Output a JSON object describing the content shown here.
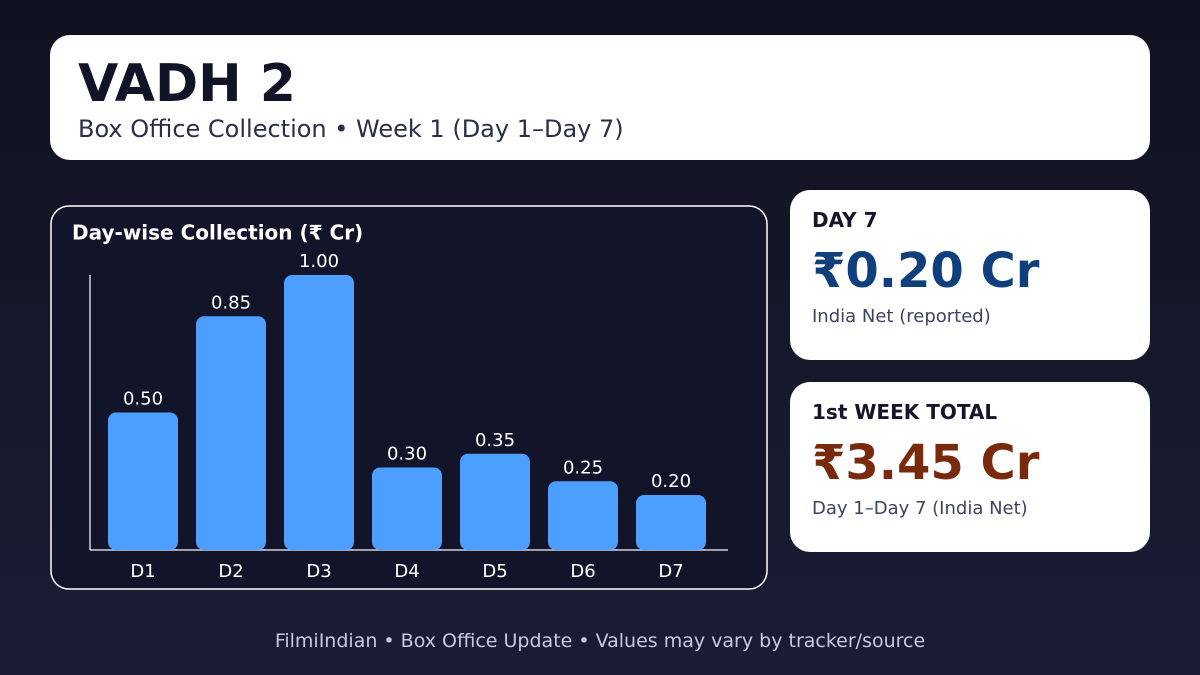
{
  "header": {
    "title": "VADH 2",
    "subtitle": "Box Office Collection • Week 1 (Day 1–Day 7)"
  },
  "chart_data": {
    "type": "bar",
    "title": "Day-wise Collection (₹ Cr)",
    "categories": [
      "D1",
      "D2",
      "D3",
      "D4",
      "D5",
      "D6",
      "D7"
    ],
    "values": [
      0.5,
      0.85,
      1.0,
      0.3,
      0.35,
      0.25,
      0.2
    ],
    "value_labels": [
      "0.50",
      "0.85",
      "1.00",
      "0.30",
      "0.35",
      "0.25",
      "0.20"
    ],
    "color": "#4d9fff",
    "ylim": [
      0,
      1
    ]
  },
  "cards": [
    {
      "label": "DAY 7",
      "value": "₹0.20 Cr",
      "note": "India Net (reported)"
    },
    {
      "label": "1st WEEK TOTAL",
      "value": "₹3.45 Cr",
      "note": "Day 1–Day 7 (India Net)"
    }
  ],
  "footer": "FilmiIndian • Box Office Update • Values may vary by tracker/source"
}
